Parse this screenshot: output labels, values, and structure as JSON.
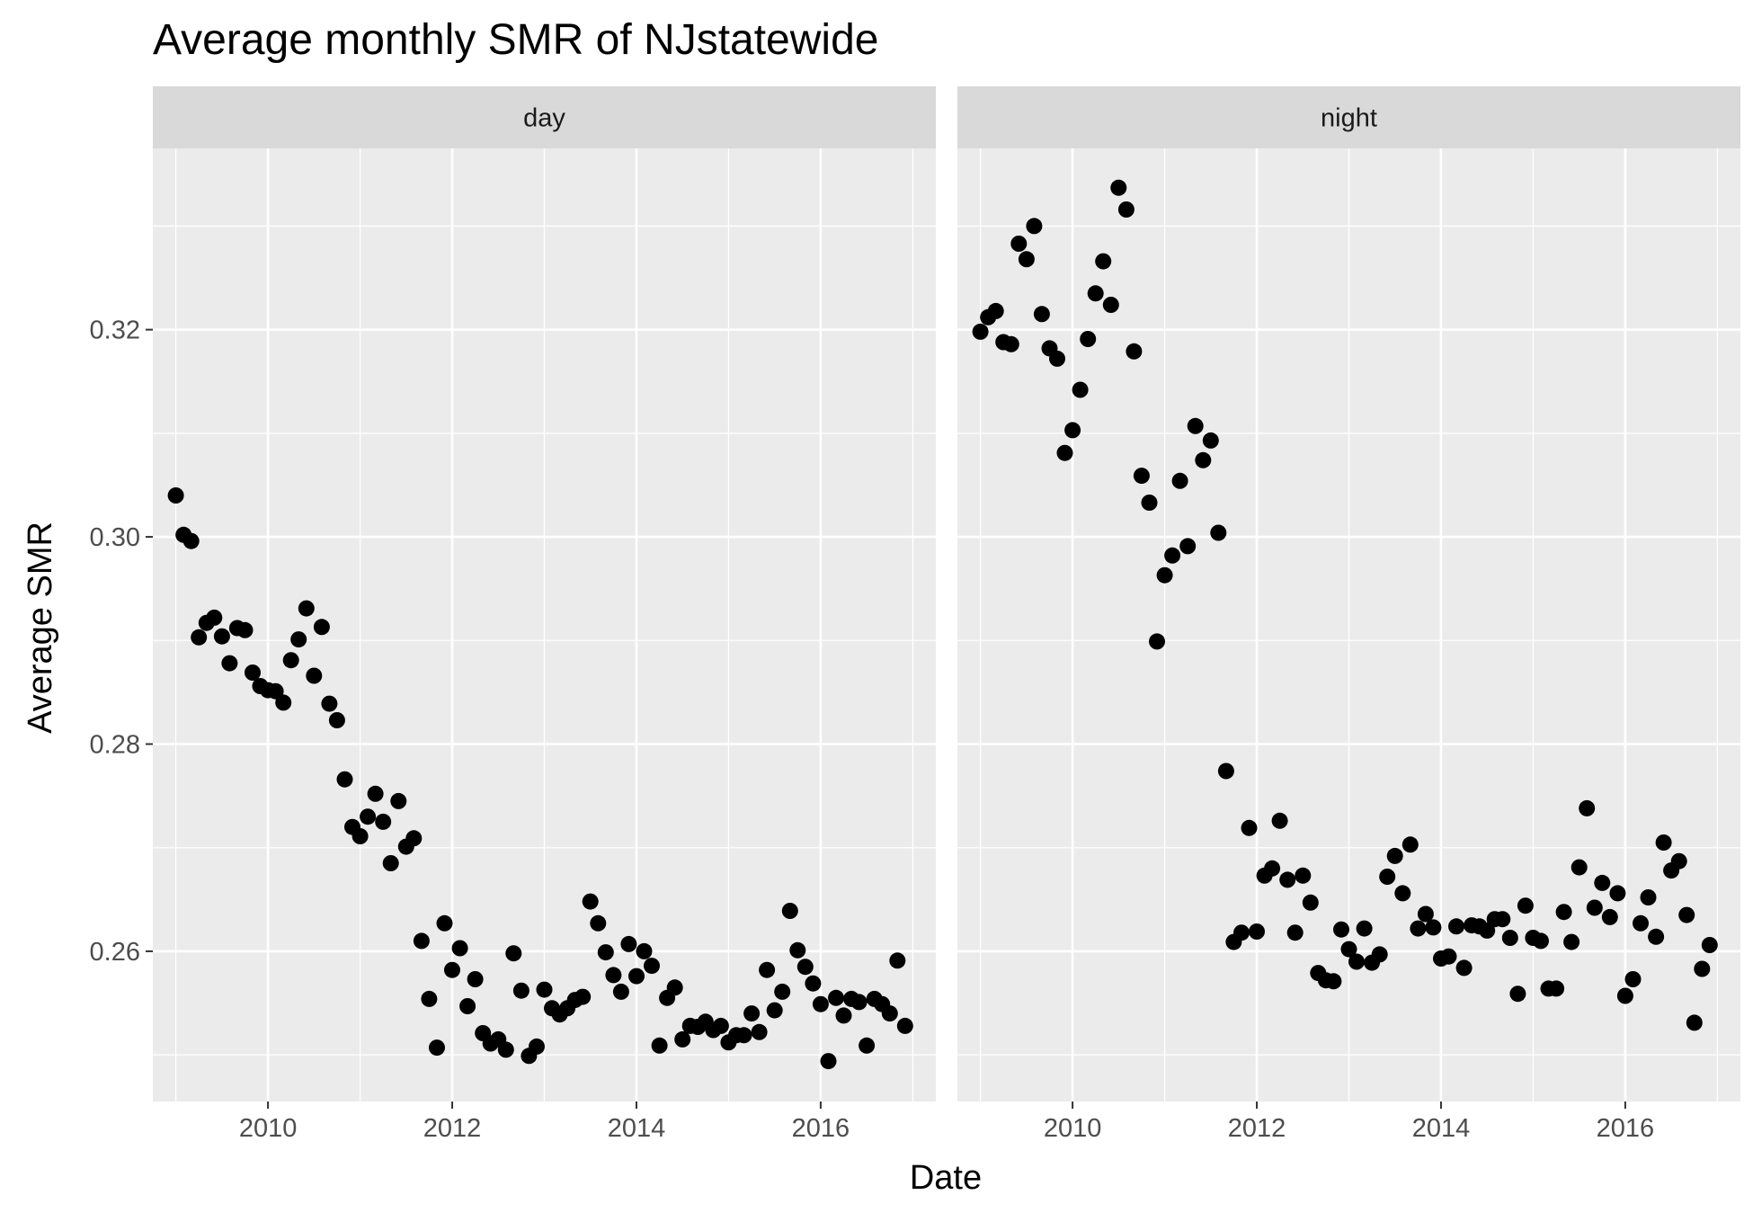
{
  "chart_data": {
    "type": "scatter",
    "title": "Average monthly SMR of NJstatewide",
    "xlabel": "Date",
    "ylabel": "Average SMR",
    "grid": true,
    "x_ticks": [
      "2010",
      "2012",
      "2014",
      "2016"
    ],
    "y_ticks": [
      "0.26",
      "0.28",
      "0.30",
      "0.32"
    ],
    "xlim": [
      "2008-10",
      "2017-04"
    ],
    "ylim": [
      0.2455,
      0.3375
    ],
    "panels": [
      {
        "name": "day",
        "points": [
          [
            "2009-01",
            0.304
          ],
          [
            "2009-02",
            0.3002
          ],
          [
            "2009-03",
            0.2996
          ],
          [
            "2009-04",
            0.2903
          ],
          [
            "2009-05",
            0.2917
          ],
          [
            "2009-06",
            0.2922
          ],
          [
            "2009-07",
            0.2904
          ],
          [
            "2009-08",
            0.2878
          ],
          [
            "2009-09",
            0.2912
          ],
          [
            "2009-10",
            0.291
          ],
          [
            "2009-11",
            0.2869
          ],
          [
            "2009-12",
            0.2856
          ],
          [
            "2010-01",
            0.2852
          ],
          [
            "2010-02",
            0.2851
          ],
          [
            "2010-03",
            0.284
          ],
          [
            "2010-04",
            0.2881
          ],
          [
            "2010-05",
            0.2901
          ],
          [
            "2010-06",
            0.2931
          ],
          [
            "2010-07",
            0.2866
          ],
          [
            "2010-08",
            0.2913
          ],
          [
            "2010-09",
            0.2839
          ],
          [
            "2010-10",
            0.2823
          ],
          [
            "2010-11",
            0.2766
          ],
          [
            "2010-12",
            0.272
          ],
          [
            "2011-01",
            0.2711
          ],
          [
            "2011-02",
            0.273
          ],
          [
            "2011-03",
            0.2752
          ],
          [
            "2011-04",
            0.2725
          ],
          [
            "2011-05",
            0.2685
          ],
          [
            "2011-06",
            0.2745
          ],
          [
            "2011-07",
            0.2701
          ],
          [
            "2011-08",
            0.2709
          ],
          [
            "2011-09",
            0.261
          ],
          [
            "2011-10",
            0.2554
          ],
          [
            "2011-11",
            0.2507
          ],
          [
            "2011-12",
            0.2627
          ],
          [
            "2012-01",
            0.2582
          ],
          [
            "2012-02",
            0.2603
          ],
          [
            "2012-03",
            0.2547
          ],
          [
            "2012-04",
            0.2573
          ],
          [
            "2012-05",
            0.2521
          ],
          [
            "2012-06",
            0.2511
          ],
          [
            "2012-07",
            0.2515
          ],
          [
            "2012-08",
            0.2505
          ],
          [
            "2012-09",
            0.2598
          ],
          [
            "2012-10",
            0.2562
          ],
          [
            "2012-11",
            0.2499
          ],
          [
            "2012-12",
            0.2508
          ],
          [
            "2013-01",
            0.2563
          ],
          [
            "2013-02",
            0.2545
          ],
          [
            "2013-03",
            0.2539
          ],
          [
            "2013-04",
            0.2545
          ],
          [
            "2013-05",
            0.2553
          ],
          [
            "2013-06",
            0.2556
          ],
          [
            "2013-07",
            0.2648
          ],
          [
            "2013-08",
            0.2627
          ],
          [
            "2013-09",
            0.2599
          ],
          [
            "2013-10",
            0.2577
          ],
          [
            "2013-11",
            0.2561
          ],
          [
            "2013-12",
            0.2607
          ],
          [
            "2014-01",
            0.2576
          ],
          [
            "2014-02",
            0.26
          ],
          [
            "2014-03",
            0.2586
          ],
          [
            "2014-04",
            0.2509
          ],
          [
            "2014-05",
            0.2555
          ],
          [
            "2014-06",
            0.2565
          ],
          [
            "2014-07",
            0.2515
          ],
          [
            "2014-08",
            0.2528
          ],
          [
            "2014-09",
            0.2527
          ],
          [
            "2014-10",
            0.2532
          ],
          [
            "2014-11",
            0.2524
          ],
          [
            "2014-12",
            0.2528
          ],
          [
            "2015-01",
            0.2512
          ],
          [
            "2015-02",
            0.2519
          ],
          [
            "2015-03",
            0.2519
          ],
          [
            "2015-04",
            0.254
          ],
          [
            "2015-05",
            0.2522
          ],
          [
            "2015-06",
            0.2582
          ],
          [
            "2015-07",
            0.2543
          ],
          [
            "2015-08",
            0.2561
          ],
          [
            "2015-09",
            0.2639
          ],
          [
            "2015-10",
            0.2601
          ],
          [
            "2015-11",
            0.2585
          ],
          [
            "2015-12",
            0.2569
          ],
          [
            "2016-01",
            0.2549
          ],
          [
            "2016-02",
            0.2494
          ],
          [
            "2016-03",
            0.2555
          ],
          [
            "2016-04",
            0.2538
          ],
          [
            "2016-05",
            0.2554
          ],
          [
            "2016-06",
            0.2551
          ],
          [
            "2016-07",
            0.2509
          ],
          [
            "2016-08",
            0.2554
          ],
          [
            "2016-09",
            0.2549
          ],
          [
            "2016-10",
            0.254
          ],
          [
            "2016-11",
            0.2591
          ],
          [
            "2016-12",
            0.2528
          ]
        ]
      },
      {
        "name": "night",
        "points": [
          [
            "2009-01",
            0.3198
          ],
          [
            "2009-02",
            0.3212
          ],
          [
            "2009-03",
            0.3218
          ],
          [
            "2009-04",
            0.3188
          ],
          [
            "2009-05",
            0.3186
          ],
          [
            "2009-06",
            0.3283
          ],
          [
            "2009-07",
            0.3268
          ],
          [
            "2009-08",
            0.33
          ],
          [
            "2009-09",
            0.3215
          ],
          [
            "2009-10",
            0.3182
          ],
          [
            "2009-11",
            0.3172
          ],
          [
            "2009-12",
            0.3081
          ],
          [
            "2010-01",
            0.3103
          ],
          [
            "2010-02",
            0.3142
          ],
          [
            "2010-03",
            0.3191
          ],
          [
            "2010-04",
            0.3235
          ],
          [
            "2010-05",
            0.3266
          ],
          [
            "2010-06",
            0.3224
          ],
          [
            "2010-07",
            0.3337
          ],
          [
            "2010-08",
            0.3316
          ],
          [
            "2010-09",
            0.3179
          ],
          [
            "2010-10",
            0.3059
          ],
          [
            "2010-11",
            0.3033
          ],
          [
            "2010-12",
            0.2899
          ],
          [
            "2011-01",
            0.2963
          ],
          [
            "2011-02",
            0.2982
          ],
          [
            "2011-03",
            0.3054
          ],
          [
            "2011-04",
            0.2991
          ],
          [
            "2011-05",
            0.3107
          ],
          [
            "2011-06",
            0.3074
          ],
          [
            "2011-07",
            0.3093
          ],
          [
            "2011-08",
            0.3004
          ],
          [
            "2011-09",
            0.2774
          ],
          [
            "2011-10",
            0.2609
          ],
          [
            "2011-11",
            0.2618
          ],
          [
            "2011-12",
            0.2719
          ],
          [
            "2012-01",
            0.2619
          ],
          [
            "2012-02",
            0.2673
          ],
          [
            "2012-03",
            0.268
          ],
          [
            "2012-04",
            0.2726
          ],
          [
            "2012-05",
            0.2669
          ],
          [
            "2012-06",
            0.2618
          ],
          [
            "2012-07",
            0.2673
          ],
          [
            "2012-08",
            0.2647
          ],
          [
            "2012-09",
            0.2579
          ],
          [
            "2012-10",
            0.2572
          ],
          [
            "2012-11",
            0.2571
          ],
          [
            "2012-12",
            0.2621
          ],
          [
            "2013-01",
            0.2602
          ],
          [
            "2013-02",
            0.259
          ],
          [
            "2013-03",
            0.2622
          ],
          [
            "2013-04",
            0.2589
          ],
          [
            "2013-05",
            0.2597
          ],
          [
            "2013-06",
            0.2672
          ],
          [
            "2013-07",
            0.2692
          ],
          [
            "2013-08",
            0.2656
          ],
          [
            "2013-09",
            0.2703
          ],
          [
            "2013-10",
            0.2622
          ],
          [
            "2013-11",
            0.2636
          ],
          [
            "2013-12",
            0.2623
          ],
          [
            "2014-01",
            0.2593
          ],
          [
            "2014-02",
            0.2595
          ],
          [
            "2014-03",
            0.2624
          ],
          [
            "2014-04",
            0.2584
          ],
          [
            "2014-05",
            0.2625
          ],
          [
            "2014-06",
            0.2624
          ],
          [
            "2014-07",
            0.262
          ],
          [
            "2014-08",
            0.2631
          ],
          [
            "2014-09",
            0.2631
          ],
          [
            "2014-10",
            0.2613
          ],
          [
            "2014-11",
            0.2559
          ],
          [
            "2014-12",
            0.2644
          ],
          [
            "2015-01",
            0.2613
          ],
          [
            "2015-02",
            0.261
          ],
          [
            "2015-03",
            0.2564
          ],
          [
            "2015-04",
            0.2564
          ],
          [
            "2015-05",
            0.2638
          ],
          [
            "2015-06",
            0.2609
          ],
          [
            "2015-07",
            0.2681
          ],
          [
            "2015-08",
            0.2738
          ],
          [
            "2015-09",
            0.2642
          ],
          [
            "2015-10",
            0.2666
          ],
          [
            "2015-11",
            0.2633
          ],
          [
            "2015-12",
            0.2656
          ],
          [
            "2016-01",
            0.2557
          ],
          [
            "2016-02",
            0.2573
          ],
          [
            "2016-03",
            0.2627
          ],
          [
            "2016-04",
            0.2652
          ],
          [
            "2016-05",
            0.2614
          ],
          [
            "2016-06",
            0.2705
          ],
          [
            "2016-07",
            0.2678
          ],
          [
            "2016-08",
            0.2687
          ],
          [
            "2016-09",
            0.2635
          ],
          [
            "2016-10",
            0.2531
          ],
          [
            "2016-11",
            0.2583
          ],
          [
            "2016-12",
            0.2606
          ]
        ]
      }
    ]
  }
}
